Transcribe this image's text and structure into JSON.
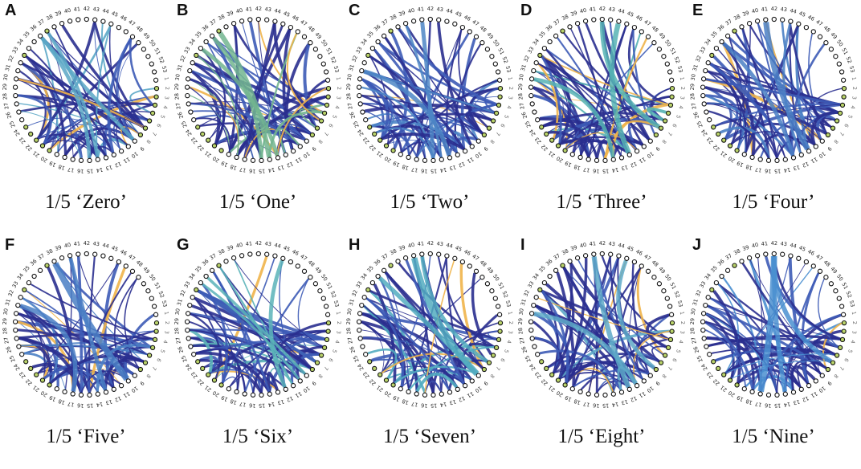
{
  "panels": [
    {
      "letter": "A",
      "caption": "1/5 ‘Zero’",
      "accent": "#5ba7c6"
    },
    {
      "letter": "B",
      "caption": "1/5 ‘One’",
      "accent": "#72b58f"
    },
    {
      "letter": "C",
      "caption": "1/5 ‘Two’",
      "accent": "#4e86c6"
    },
    {
      "letter": "D",
      "caption": "1/5 ‘Three’",
      "accent": "#56b3b4"
    },
    {
      "letter": "E",
      "caption": "1/5 ‘Four’",
      "accent": "#4a7fc4"
    },
    {
      "letter": "F",
      "caption": "1/5 ‘Five’",
      "accent": "#4a7fc4"
    },
    {
      "letter": "G",
      "caption": "1/5 ‘Six’",
      "accent": "#5ab3b8"
    },
    {
      "letter": "H",
      "caption": "1/5 ‘Seven’",
      "accent": "#52acc0"
    },
    {
      "letter": "I",
      "caption": "1/5 ‘Eight’",
      "accent": "#5ea9c8"
    },
    {
      "letter": "J",
      "caption": "1/5 ‘Nine’",
      "accent": "#4a8fd0"
    }
  ],
  "node_labels": [
    "1",
    "2",
    "3",
    "4",
    "5",
    "6",
    "7",
    "8",
    "9",
    "10",
    "11",
    "12",
    "13",
    "14",
    "15",
    "16",
    "17",
    "18",
    "19",
    "20",
    "21",
    "22",
    "23",
    "24",
    "25",
    "26",
    "27",
    "28",
    "29",
    "30",
    "31",
    "32",
    "33",
    "34",
    "35",
    "36",
    "37",
    "38",
    "39",
    "40",
    "41",
    "42",
    "43",
    "44",
    "45",
    "46",
    "47",
    "48",
    "49",
    "50",
    "51",
    "52",
    "53"
  ],
  "colors": {
    "primary": "#2a2f8f",
    "secondary": "#3d5bb6",
    "highlight": "#f0b44a"
  }
}
